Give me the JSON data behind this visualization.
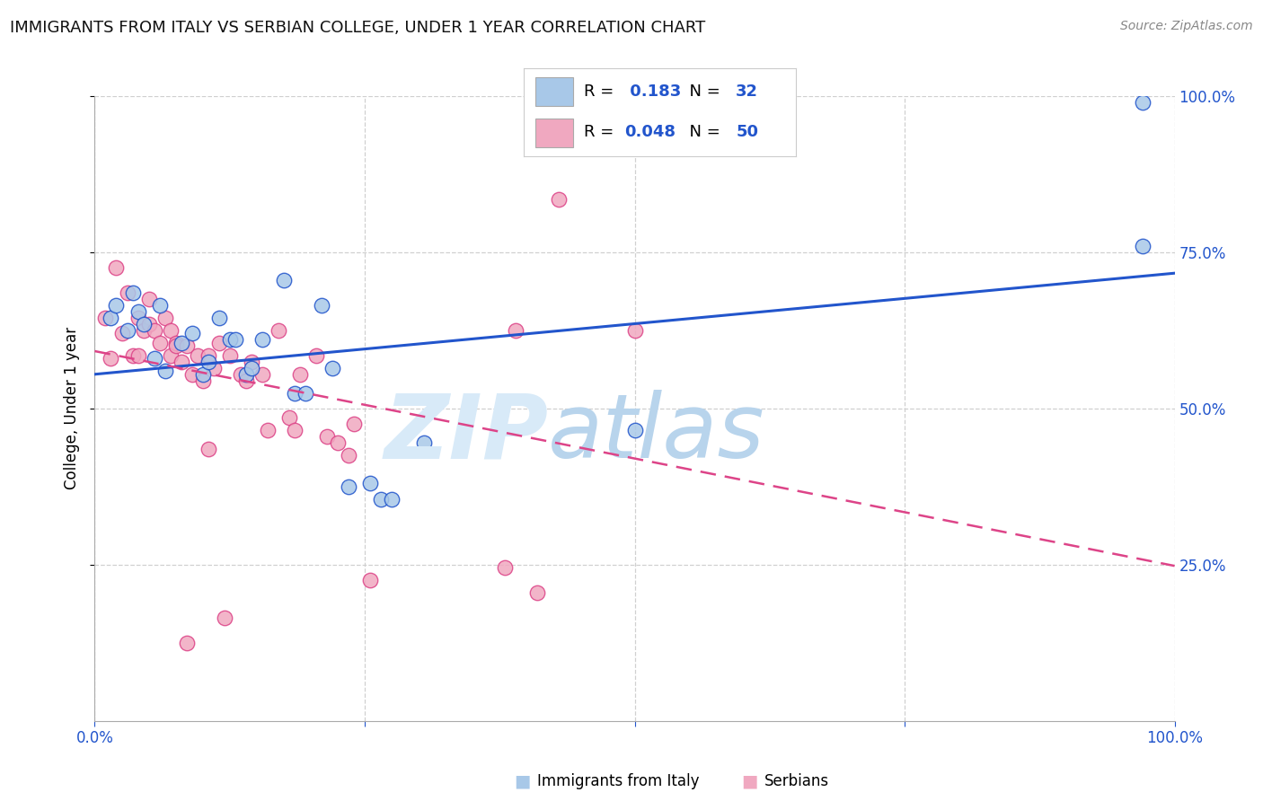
{
  "title": "IMMIGRANTS FROM ITALY VS SERBIAN COLLEGE, UNDER 1 YEAR CORRELATION CHART",
  "source": "Source: ZipAtlas.com",
  "ylabel": "College, Under 1 year",
  "legend_label_blue": "Immigrants from Italy",
  "legend_label_pink": "Serbians",
  "R_blue": 0.183,
  "N_blue": 32,
  "R_pink": 0.048,
  "N_pink": 50,
  "color_blue": "#a8c8e8",
  "color_pink": "#f0a8c0",
  "line_color_blue": "#2255cc",
  "line_color_pink": "#dd4488",
  "xlim": [
    0,
    1
  ],
  "ylim": [
    0,
    1
  ],
  "blue_x": [
    0.015,
    0.02,
    0.03,
    0.035,
    0.04,
    0.045,
    0.055,
    0.06,
    0.065,
    0.08,
    0.09,
    0.1,
    0.105,
    0.115,
    0.125,
    0.13,
    0.14,
    0.145,
    0.155,
    0.175,
    0.185,
    0.195,
    0.21,
    0.22,
    0.235,
    0.255,
    0.265,
    0.275,
    0.305,
    0.5,
    0.97,
    0.97
  ],
  "blue_y": [
    0.645,
    0.665,
    0.625,
    0.685,
    0.655,
    0.635,
    0.58,
    0.665,
    0.56,
    0.605,
    0.62,
    0.555,
    0.575,
    0.645,
    0.61,
    0.61,
    0.555,
    0.565,
    0.61,
    0.705,
    0.525,
    0.525,
    0.665,
    0.565,
    0.375,
    0.38,
    0.355,
    0.355,
    0.445,
    0.465,
    0.76,
    0.99
  ],
  "pink_x": [
    0.01,
    0.015,
    0.02,
    0.025,
    0.03,
    0.035,
    0.04,
    0.04,
    0.045,
    0.05,
    0.05,
    0.055,
    0.06,
    0.065,
    0.07,
    0.07,
    0.075,
    0.075,
    0.08,
    0.085,
    0.09,
    0.095,
    0.1,
    0.105,
    0.11,
    0.115,
    0.125,
    0.135,
    0.14,
    0.145,
    0.155,
    0.16,
    0.17,
    0.18,
    0.185,
    0.19,
    0.205,
    0.215,
    0.225,
    0.235,
    0.24,
    0.255,
    0.38,
    0.39,
    0.41,
    0.43,
    0.5,
    0.12,
    0.085,
    0.105
  ],
  "pink_y": [
    0.645,
    0.58,
    0.725,
    0.62,
    0.685,
    0.585,
    0.585,
    0.645,
    0.625,
    0.675,
    0.635,
    0.625,
    0.605,
    0.645,
    0.585,
    0.625,
    0.605,
    0.6,
    0.575,
    0.6,
    0.555,
    0.585,
    0.545,
    0.585,
    0.565,
    0.605,
    0.585,
    0.555,
    0.545,
    0.575,
    0.555,
    0.465,
    0.625,
    0.485,
    0.465,
    0.555,
    0.585,
    0.455,
    0.445,
    0.425,
    0.475,
    0.225,
    0.245,
    0.625,
    0.205,
    0.835,
    0.625,
    0.165,
    0.125,
    0.435
  ]
}
